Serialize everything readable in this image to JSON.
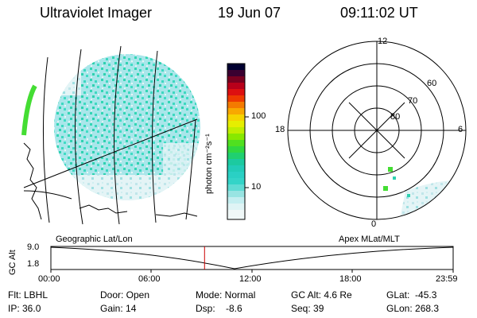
{
  "header": {
    "instrument": "Ultraviolet Imager",
    "date": "19 Jun 07",
    "time": "09:11:02 UT"
  },
  "colorbar": {
    "unit_label": "photon cm⁻²s⁻¹",
    "ticks": [
      "100",
      "10"
    ]
  },
  "polar_plot": {
    "mlt_labels": [
      "12",
      "18",
      "6",
      "0"
    ],
    "lat_labels": [
      "60",
      "70",
      "80"
    ]
  },
  "panels": {
    "left_caption": "Geographic Lat/Lon",
    "right_caption": "Apex MLat/MLT"
  },
  "altitude_strip": {
    "axis_label": "GC Alt",
    "y_ticks": [
      "9.0",
      "1.8"
    ],
    "time_ticks": [
      "00:00",
      "06:00",
      "12:00",
      "18:00",
      "23:59"
    ],
    "current_time_fraction": 0.382
  },
  "status": {
    "flt": "Flt: LBHL",
    "ip": "IP: 36.0",
    "door": "Door: Open",
    "gain": "Gain: 14",
    "mode": "Mode: Normal",
    "dsp": "Dsp:    -8.6",
    "gc_alt": "GC Alt: 4.6 Re",
    "seq": "Seq: 39",
    "glat": "GLat:  -45.3",
    "glon": "GLon: 268.3"
  },
  "colors": {
    "aurora_main": "#33d6b4",
    "aurora_light": "#c8ecef",
    "aurora_green": "#44dd33",
    "marker_red": "#cc0000"
  }
}
